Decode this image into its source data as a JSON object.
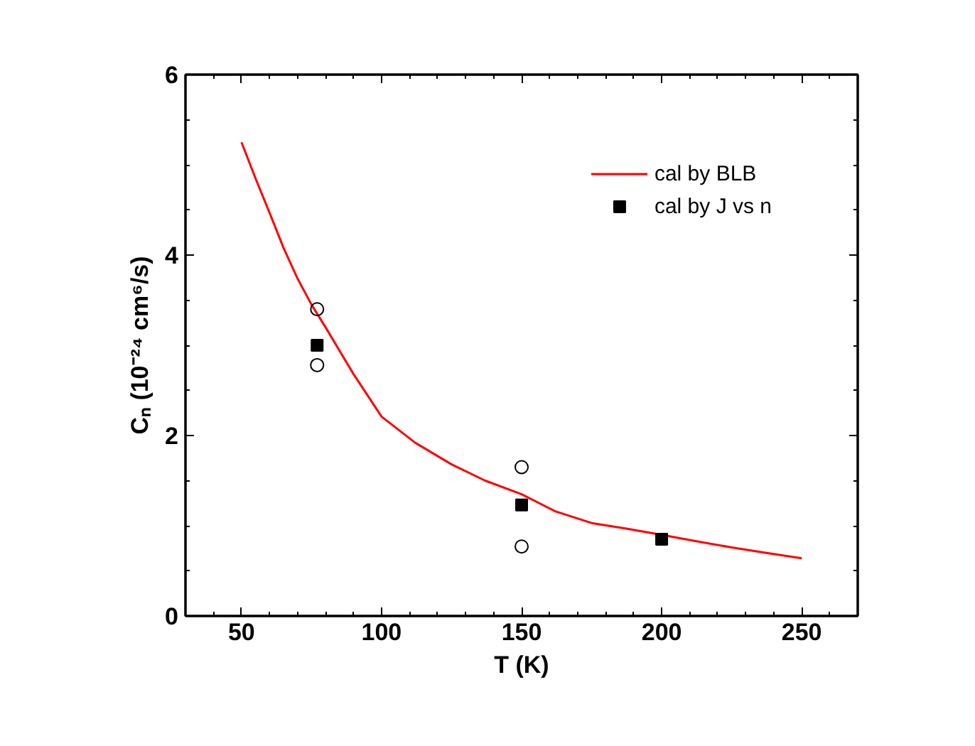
{
  "chart_data": {
    "type": "line",
    "xlabel": "T (K)",
    "ylabel": "Cₙ (10⁻²⁴ cm⁶/s)",
    "xlim": [
      30,
      270
    ],
    "ylim": [
      0,
      6
    ],
    "xticks": [
      50,
      100,
      150,
      200,
      250
    ],
    "yticks": [
      0,
      2,
      4,
      6
    ],
    "grid": false,
    "legend": "top right",
    "series": [
      {
        "name": "cal by BLB",
        "color": "#ff0000",
        "x": [
          50,
          55,
          60,
          65,
          70,
          75,
          80,
          90,
          100,
          112,
          125,
          137,
          150,
          162,
          175,
          187,
          200,
          212,
          225,
          237,
          250
        ],
        "values": [
          5.25,
          4.85,
          4.47,
          4.08,
          3.74,
          3.45,
          3.2,
          2.68,
          2.21,
          1.92,
          1.68,
          1.5,
          1.35,
          1.16,
          1.03,
          0.97,
          0.9,
          0.83,
          0.76,
          0.7,
          0.64
        ]
      },
      {
        "name": "cal by J vs n",
        "type": "scatter",
        "color": "#000000",
        "marker": "square",
        "x": [
          77,
          150,
          200
        ],
        "values": [
          3.0,
          1.23,
          0.85
        ]
      },
      {
        "type": "scatter",
        "color": "#000000",
        "marker": "circle_open",
        "x": [
          77,
          77,
          150,
          150
        ],
        "values": [
          3.4,
          2.78,
          1.65,
          0.77
        ]
      }
    ]
  }
}
